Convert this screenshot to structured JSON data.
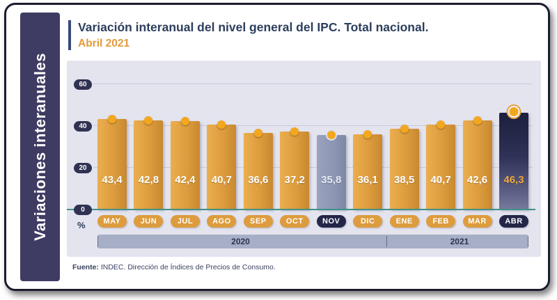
{
  "sidebar": {
    "label": "Variaciones interanuales"
  },
  "header": {
    "title": "Variación interanual del nivel general del IPC. Total nacional.",
    "subtitle": "Abril 2021"
  },
  "axis": {
    "percent_label": "%"
  },
  "chart_data": {
    "type": "bar",
    "title": "Variación interanual del nivel general del IPC. Total nacional. Abril 2021",
    "categories": [
      "MAY",
      "JUN",
      "JUL",
      "AGO",
      "SEP",
      "OCT",
      "NOV",
      "DIC",
      "ENE",
      "FEB",
      "MAR",
      "ABR"
    ],
    "values": [
      43.4,
      42.8,
      42.4,
      40.7,
      36.6,
      37.2,
      35.8,
      36.1,
      38.5,
      40.7,
      42.6,
      46.3
    ],
    "value_labels": [
      "43,4",
      "42,8",
      "42,4",
      "40,7",
      "36,6",
      "37,2",
      "35,8",
      "36,1",
      "38,5",
      "40,7",
      "42,6",
      "46,3"
    ],
    "highlight_nov_index": 6,
    "highlight_abr_index": 11,
    "ylabel": "%",
    "ylim": [
      0,
      60
    ],
    "yticks": [
      0,
      20,
      40,
      60
    ],
    "ytick_labels": [
      "0",
      "20",
      "40",
      "60"
    ],
    "grid": true,
    "legend": "none",
    "years": [
      {
        "label": "2020",
        "months": [
          "MAY",
          "JUN",
          "JUL",
          "AGO",
          "SEP",
          "OCT",
          "NOV",
          "DIC"
        ]
      },
      {
        "label": "2021",
        "months": [
          "ENE",
          "FEB",
          "MAR",
          "ABR"
        ]
      }
    ],
    "colors": {
      "bar_default": "#DD9C3D",
      "bar_nov": "#8C96B2",
      "bar_abr": "#2F3156",
      "dot": "#F3A71E",
      "baseline_teal": "#3F9188",
      "panel_bg": "#E4E4EF",
      "year_band": "#A7AFC6",
      "tick_badge": "#303253",
      "sidebar_bg": "#3E3C63",
      "title_text": "#2C3E5C",
      "accent_orange": "#E39A3B",
      "abr_value_text": "#EFA73C"
    }
  },
  "footer": {
    "source_bold": "Fuente:",
    "source_rest": " INDEC. Dirección de Índices de Precios de Consumo."
  }
}
